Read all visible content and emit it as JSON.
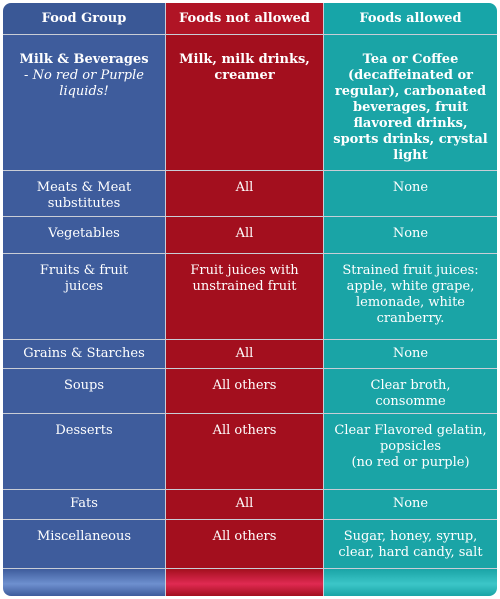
{
  "header": {
    "food_group": "Food Group",
    "not_allowed": "Foods not allowed",
    "allowed": "Foods allowed"
  },
  "rows": [
    {
      "group": "Milk & Beverages",
      "group_note": "- No red or Purple liquids!",
      "not_allowed": "Milk, milk drinks, creamer",
      "allowed": "Tea or Coffee (decaffeinated or regular), carbonated beverages, fruit flavored drinks, sports drinks, crystal light"
    },
    {
      "group": "Meats & Meat substitutes",
      "not_allowed": "All",
      "allowed": "None"
    },
    {
      "group": "Vegetables",
      "not_allowed": "All",
      "allowed": "None"
    },
    {
      "group": "Fruits & fruit juices",
      "not_allowed": "Fruit juices with unstrained fruit",
      "allowed": "Strained fruit juices: apple, white grape, lemonade, white cranberry."
    },
    {
      "group": "Grains & Starches",
      "not_allowed": "All",
      "allowed": "None"
    },
    {
      "group": "Soups",
      "not_allowed": "All others",
      "allowed": "Clear broth, consomme"
    },
    {
      "group": "Desserts",
      "not_allowed": "All others",
      "allowed": "Clear Flavored gelatin, popsicles",
      "allowed_note": "(no red or purple)"
    },
    {
      "group": "Fats",
      "not_allowed": "All",
      "allowed": "None"
    },
    {
      "group": "Miscellaneous",
      "not_allowed": "All others",
      "allowed": "Sugar, honey, syrup, clear, hard candy, salt"
    }
  ],
  "colors": {
    "food_group_column": "#3e5c9c",
    "not_allowed_column": "#a30f1e",
    "allowed_column": "#1aa4a6"
  }
}
